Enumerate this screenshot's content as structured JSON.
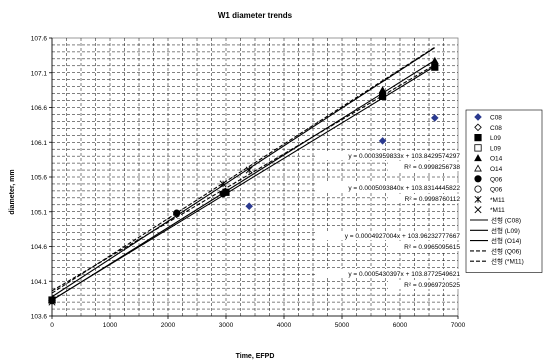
{
  "chart_data": {
    "type": "scatter",
    "title": "W1 diameter trends",
    "xlabel": "Time, EFPD",
    "ylabel": "diameter, mm",
    "xlim": [
      0,
      7000
    ],
    "ylim": [
      103.6,
      107.6
    ],
    "x_ticks": [
      0,
      1000,
      2000,
      3000,
      4000,
      5000,
      6000,
      7000
    ],
    "y_ticks": [
      103.6,
      104.1,
      104.6,
      105.1,
      105.6,
      106.1,
      106.6,
      107.1,
      107.6
    ],
    "x_tick_labels": [
      "0",
      "1000",
      "2000",
      "3000",
      "4000",
      "5000",
      "6000",
      "7000"
    ],
    "y_tick_labels": [
      "103.6",
      "104.1",
      "104.6",
      "105.1",
      "105.6",
      "106.1",
      "106.6",
      "107.1",
      "107.6"
    ],
    "grid": "dashed",
    "legend_position": "right",
    "series": [
      {
        "name": "C08",
        "marker": "diamond",
        "color": "#2b3a8f",
        "x": [
          0,
          3400,
          5700,
          6600
        ],
        "y": [
          103.82,
          105.18,
          106.12,
          106.45
        ]
      },
      {
        "name": "C08",
        "marker": "diamond-open",
        "color": "#000000",
        "x": [],
        "y": []
      },
      {
        "name": "L09",
        "marker": "square",
        "color": "#000000",
        "x": [
          0,
          3000,
          5700,
          6600
        ],
        "y": [
          103.83,
          105.38,
          106.76,
          107.18
        ]
      },
      {
        "name": "L09",
        "marker": "square-open",
        "color": "#000000",
        "x": [],
        "y": []
      },
      {
        "name": "O14",
        "marker": "triangle",
        "color": "#000000",
        "x": [
          0,
          5700,
          6600
        ],
        "y": [
          103.83,
          106.85,
          107.27
        ]
      },
      {
        "name": "O14",
        "marker": "triangle-open",
        "color": "#000000",
        "x": [],
        "y": []
      },
      {
        "name": "Q06",
        "marker": "circle",
        "color": "#000000",
        "x": [
          0,
          2150,
          2950
        ],
        "y": [
          103.82,
          105.08,
          105.36
        ]
      },
      {
        "name": "Q06",
        "marker": "circle-open",
        "color": "#000000",
        "x": [],
        "y": []
      },
      {
        "name": "*M11",
        "marker": "star",
        "color": "#000000",
        "x": [
          0,
          2950,
          3400
        ],
        "y": [
          103.8,
          105.5,
          105.7
        ]
      },
      {
        "name": "*M11",
        "marker": "cross",
        "color": "#000000",
        "x": [],
        "y": []
      }
    ],
    "trendlines": [
      {
        "name": "선형 (C08)",
        "style": "solid",
        "slope": 0.000543,
        "intercept": 103.8772549621,
        "x_range": [
          0,
          6600
        ]
      },
      {
        "name": "선형 (L09)",
        "style": "solid",
        "slope": 0.000509384,
        "intercept": 103.8314445822,
        "x_range": [
          0,
          6600
        ]
      },
      {
        "name": "선형 (O14)",
        "style": "solid",
        "slope": 0.000523,
        "intercept": 103.826,
        "x_range": [
          0,
          6600
        ]
      },
      {
        "name": "선형 (Q06)",
        "style": "dashed",
        "slope": 0.0004927,
        "intercept": 103.96232777,
        "x_range": [
          0,
          6600
        ]
      },
      {
        "name": "선형 (*M11)",
        "style": "dashed",
        "slope": 0.000536,
        "intercept": 103.93,
        "x_range": [
          0,
          6600
        ]
      }
    ],
    "annotations": [
      {
        "eq": "y = 0.0003959833x + 103.8429574297",
        "r2": "R² = 0.9998256738"
      },
      {
        "eq": "y = 0.0005093840x + 103.8314445822",
        "r2": "R² = 0.9998760112"
      },
      {
        "eq": "y = 0.0004927004x + 103.96232777667",
        "r2": "R² = 0.9965095615"
      },
      {
        "eq": "y = 0.0005430397x + 103.8772549621",
        "r2": "R² = 0.9969720525"
      }
    ]
  }
}
